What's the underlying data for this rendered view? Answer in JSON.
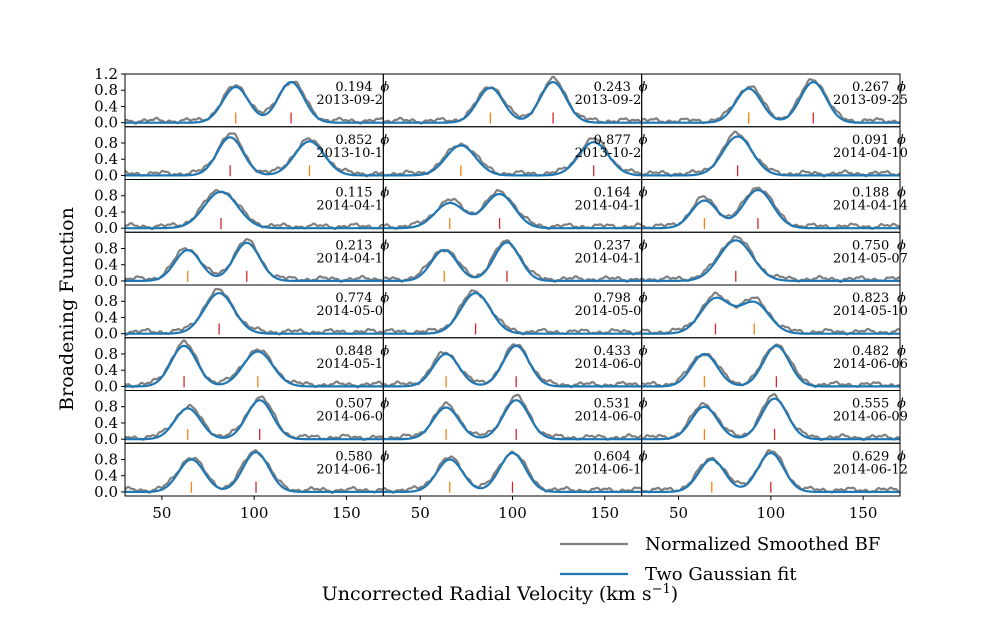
{
  "chart_data": {
    "type": "line",
    "xlabel": "Uncorrected Radial Velocity (km s",
    "xlabel_sup": "−1",
    "xlabel_close": ")",
    "ylabel": "Broadening Function",
    "xlim": [
      30,
      170
    ],
    "ylim": [
      -0.1,
      1.2
    ],
    "xticks": [
      50,
      100,
      150
    ],
    "yticks": [
      0.0,
      0.4,
      0.8,
      1.2
    ],
    "ytick_labels_top_row": [
      "0.0",
      "0.4",
      "0.8",
      "1.2"
    ],
    "ytick_labels": [
      "0.0",
      "0.4",
      "0.8"
    ],
    "grid": false,
    "legend_position": "bottom-right",
    "legend": [
      {
        "label": "Normalized Smoothed BF",
        "color": "#808080"
      },
      {
        "label": "Two Gaussian fit",
        "color": "#1f77b4"
      }
    ],
    "marker_colors": {
      "primary": "#d62728",
      "secondary": "#ff7f0e"
    },
    "phase_symbol": "ϕ",
    "panels": [
      {
        "phase": "0.194",
        "date": "2013-09-2",
        "p1": 90,
        "h1": 0.88,
        "w1": 7,
        "p2": 120,
        "h2": 1.0,
        "w2": 7,
        "mark_primary": 120,
        "mark_secondary": 90
      },
      {
        "phase": "0.243",
        "date": "2013-09-2",
        "p1": 88,
        "h1": 0.86,
        "w1": 7,
        "p2": 122,
        "h2": 1.0,
        "w2": 7,
        "mark_primary": 122,
        "mark_secondary": 88
      },
      {
        "phase": "0.267",
        "date": "2013-09-25",
        "p1": 88,
        "h1": 0.84,
        "w1": 7,
        "p2": 123,
        "h2": 1.0,
        "w2": 7,
        "mark_primary": 123,
        "mark_secondary": 88
      },
      {
        "phase": "0.852",
        "date": "2013-10-1",
        "p1": 87,
        "h1": 0.94,
        "w1": 7,
        "p2": 130,
        "h2": 0.84,
        "w2": 8,
        "mark_primary": 87,
        "mark_secondary": 130
      },
      {
        "phase": "0.877",
        "date": "2013-10-2",
        "p1": 72,
        "h1": 0.74,
        "w1": 8,
        "p2": 144,
        "h2": 0.82,
        "w2": 8,
        "mark_primary": 144,
        "mark_secondary": 72
      },
      {
        "phase": "0.091",
        "date": "2014-04-10",
        "p1": 82,
        "h1": 0.96,
        "w1": 8,
        "p2": 90,
        "h2": 0.0,
        "w2": 8,
        "mark_primary": 82,
        "mark_secondary": null
      },
      {
        "phase": "0.115",
        "date": "2014-04-1",
        "p1": 82,
        "h1": 0.9,
        "w1": 9,
        "p2": 76,
        "h2": 0.0,
        "w2": 8,
        "mark_primary": 82,
        "mark_secondary": null
      },
      {
        "phase": "0.164",
        "date": "2014-04-1",
        "p1": 66,
        "h1": 0.62,
        "w1": 8,
        "p2": 93,
        "h2": 0.84,
        "w2": 8,
        "mark_primary": 93,
        "mark_secondary": 66
      },
      {
        "phase": "0.188",
        "date": "2014-04-14",
        "p1": 64,
        "h1": 0.68,
        "w1": 7,
        "p2": 93,
        "h2": 0.94,
        "w2": 8,
        "mark_primary": 93,
        "mark_secondary": 64
      },
      {
        "phase": "0.213",
        "date": "2014-04-1",
        "p1": 64,
        "h1": 0.76,
        "w1": 7,
        "p2": 96,
        "h2": 0.94,
        "w2": 7,
        "mark_primary": 96,
        "mark_secondary": 64
      },
      {
        "phase": "0.237",
        "date": "2014-04-1",
        "p1": 63,
        "h1": 0.76,
        "w1": 7,
        "p2": 97,
        "h2": 0.95,
        "w2": 7,
        "mark_primary": 97,
        "mark_secondary": 63
      },
      {
        "phase": "0.750",
        "date": "2014-05-07",
        "p1": 81,
        "h1": 1.0,
        "w1": 9,
        "p2": 90,
        "h2": 0.0,
        "w2": 8,
        "mark_primary": 81,
        "mark_secondary": null
      },
      {
        "phase": "0.774",
        "date": "2014-05-0",
        "p1": 81,
        "h1": 1.0,
        "w1": 8,
        "p2": 90,
        "h2": 0.0,
        "w2": 8,
        "mark_primary": 81,
        "mark_secondary": null
      },
      {
        "phase": "0.798",
        "date": "2014-05-0",
        "p1": 80,
        "h1": 1.0,
        "w1": 8,
        "p2": 90,
        "h2": 0.0,
        "w2": 8,
        "mark_primary": 80,
        "mark_secondary": null
      },
      {
        "phase": "0.823",
        "date": "2014-05-10",
        "p1": 70,
        "h1": 0.86,
        "w1": 8,
        "p2": 91,
        "h2": 0.76,
        "w2": 8,
        "mark_primary": 70,
        "mark_secondary": 91
      },
      {
        "phase": "0.848",
        "date": "2014-05-1",
        "p1": 62,
        "h1": 1.0,
        "w1": 7,
        "p2": 102,
        "h2": 0.86,
        "w2": 8,
        "mark_primary": 62,
        "mark_secondary": 102
      },
      {
        "phase": "0.433",
        "date": "2014-06-0",
        "p1": 64,
        "h1": 0.8,
        "w1": 7,
        "p2": 102,
        "h2": 1.0,
        "w2": 7,
        "mark_primary": 102,
        "mark_secondary": 64
      },
      {
        "phase": "0.482",
        "date": "2014-06-06",
        "p1": 64,
        "h1": 0.8,
        "w1": 7,
        "p2": 103,
        "h2": 1.0,
        "w2": 7,
        "mark_primary": 103,
        "mark_secondary": 64
      },
      {
        "phase": "0.507",
        "date": "2014-06-0",
        "p1": 64,
        "h1": 0.76,
        "w1": 7,
        "p2": 103,
        "h2": 0.96,
        "w2": 7,
        "mark_primary": 103,
        "mark_secondary": 64
      },
      {
        "phase": "0.531",
        "date": "2014-06-0",
        "p1": 64,
        "h1": 0.78,
        "w1": 7,
        "p2": 102,
        "h2": 0.96,
        "w2": 7,
        "mark_primary": 102,
        "mark_secondary": 64
      },
      {
        "phase": "0.555",
        "date": "2014-06-09",
        "p1": 64,
        "h1": 0.8,
        "w1": 7,
        "p2": 102,
        "h2": 1.0,
        "w2": 7,
        "mark_primary": 102,
        "mark_secondary": 64
      },
      {
        "phase": "0.580",
        "date": "2014-06-1",
        "p1": 66,
        "h1": 0.8,
        "w1": 7,
        "p2": 101,
        "h2": 0.98,
        "w2": 7,
        "mark_primary": 101,
        "mark_secondary": 66
      },
      {
        "phase": "0.604",
        "date": "2014-06-1",
        "p1": 66,
        "h1": 0.8,
        "w1": 7,
        "p2": 100,
        "h2": 0.96,
        "w2": 7,
        "mark_primary": 100,
        "mark_secondary": 66
      },
      {
        "phase": "0.629",
        "date": "2014-06-12",
        "p1": 68,
        "h1": 0.8,
        "w1": 7,
        "p2": 100,
        "h2": 0.96,
        "w2": 7,
        "mark_primary": 100,
        "mark_secondary": 68
      }
    ]
  }
}
